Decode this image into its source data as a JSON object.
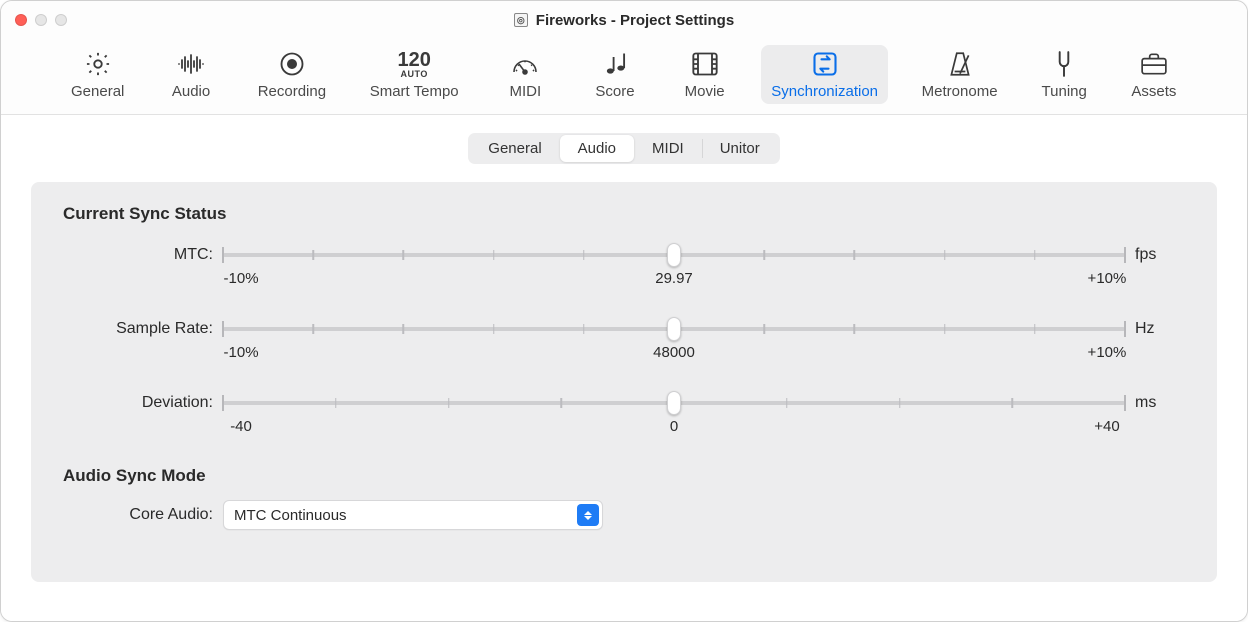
{
  "window": {
    "title": "Fireworks - Project Settings"
  },
  "toolbar": {
    "items": [
      {
        "id": "general",
        "label": "General",
        "icon": "gear-icon"
      },
      {
        "id": "audio",
        "label": "Audio",
        "icon": "waveform-icon"
      },
      {
        "id": "recording",
        "label": "Recording",
        "icon": "record-icon"
      },
      {
        "id": "smart_tempo",
        "label": "Smart Tempo",
        "icon": "tempo-icon",
        "icon_text_big": "120",
        "icon_text_small": "AUTO"
      },
      {
        "id": "midi",
        "label": "MIDI",
        "icon": "gauge-icon"
      },
      {
        "id": "score",
        "label": "Score",
        "icon": "notes-icon"
      },
      {
        "id": "movie",
        "label": "Movie",
        "icon": "film-icon"
      },
      {
        "id": "sync",
        "label": "Synchronization",
        "icon": "sync-icon",
        "selected": true
      },
      {
        "id": "metronome",
        "label": "Metronome",
        "icon": "metronome-icon"
      },
      {
        "id": "tuning",
        "label": "Tuning",
        "icon": "tuningfork-icon"
      },
      {
        "id": "assets",
        "label": "Assets",
        "icon": "briefcase-icon"
      }
    ]
  },
  "segmented": {
    "tabs": [
      {
        "label": "General",
        "active": false
      },
      {
        "label": "Audio",
        "active": true
      },
      {
        "label": "MIDI",
        "active": false
      },
      {
        "label": "Unitor",
        "active": false
      }
    ]
  },
  "panel": {
    "section1_title": "Current Sync Status",
    "section2_title": "Audio Sync Mode",
    "sliders": {
      "mtc": {
        "label": "MTC:",
        "unit": "fps",
        "min_label": "-10%",
        "mid_label": "29.97",
        "max_label": "+10%",
        "thumb_pct": 50,
        "ticks": [
          0,
          10,
          20,
          30,
          40,
          50,
          60,
          70,
          80,
          90,
          100
        ]
      },
      "sample_rate": {
        "label": "Sample Rate:",
        "unit": "Hz",
        "min_label": "-10%",
        "mid_label": "48000",
        "max_label": "+10%",
        "thumb_pct": 50,
        "ticks": [
          0,
          10,
          20,
          30,
          40,
          50,
          60,
          70,
          80,
          90,
          100
        ]
      },
      "deviation": {
        "label": "Deviation:",
        "unit": "ms",
        "min_label": "-40",
        "mid_label": "0",
        "max_label": "+40",
        "thumb_pct": 50,
        "ticks": [
          0,
          12.5,
          25,
          37.5,
          50,
          62.5,
          75,
          87.5,
          100
        ]
      }
    },
    "core_audio": {
      "label": "Core Audio:",
      "value": "MTC Continuous"
    }
  },
  "colors": {
    "accent": "#0a6ee8",
    "panel_bg": "#ededee",
    "window_bg": "#ffffff",
    "track": "#cfcfd1",
    "tick": "#bcbcbf",
    "text": "#2a2a2a"
  }
}
